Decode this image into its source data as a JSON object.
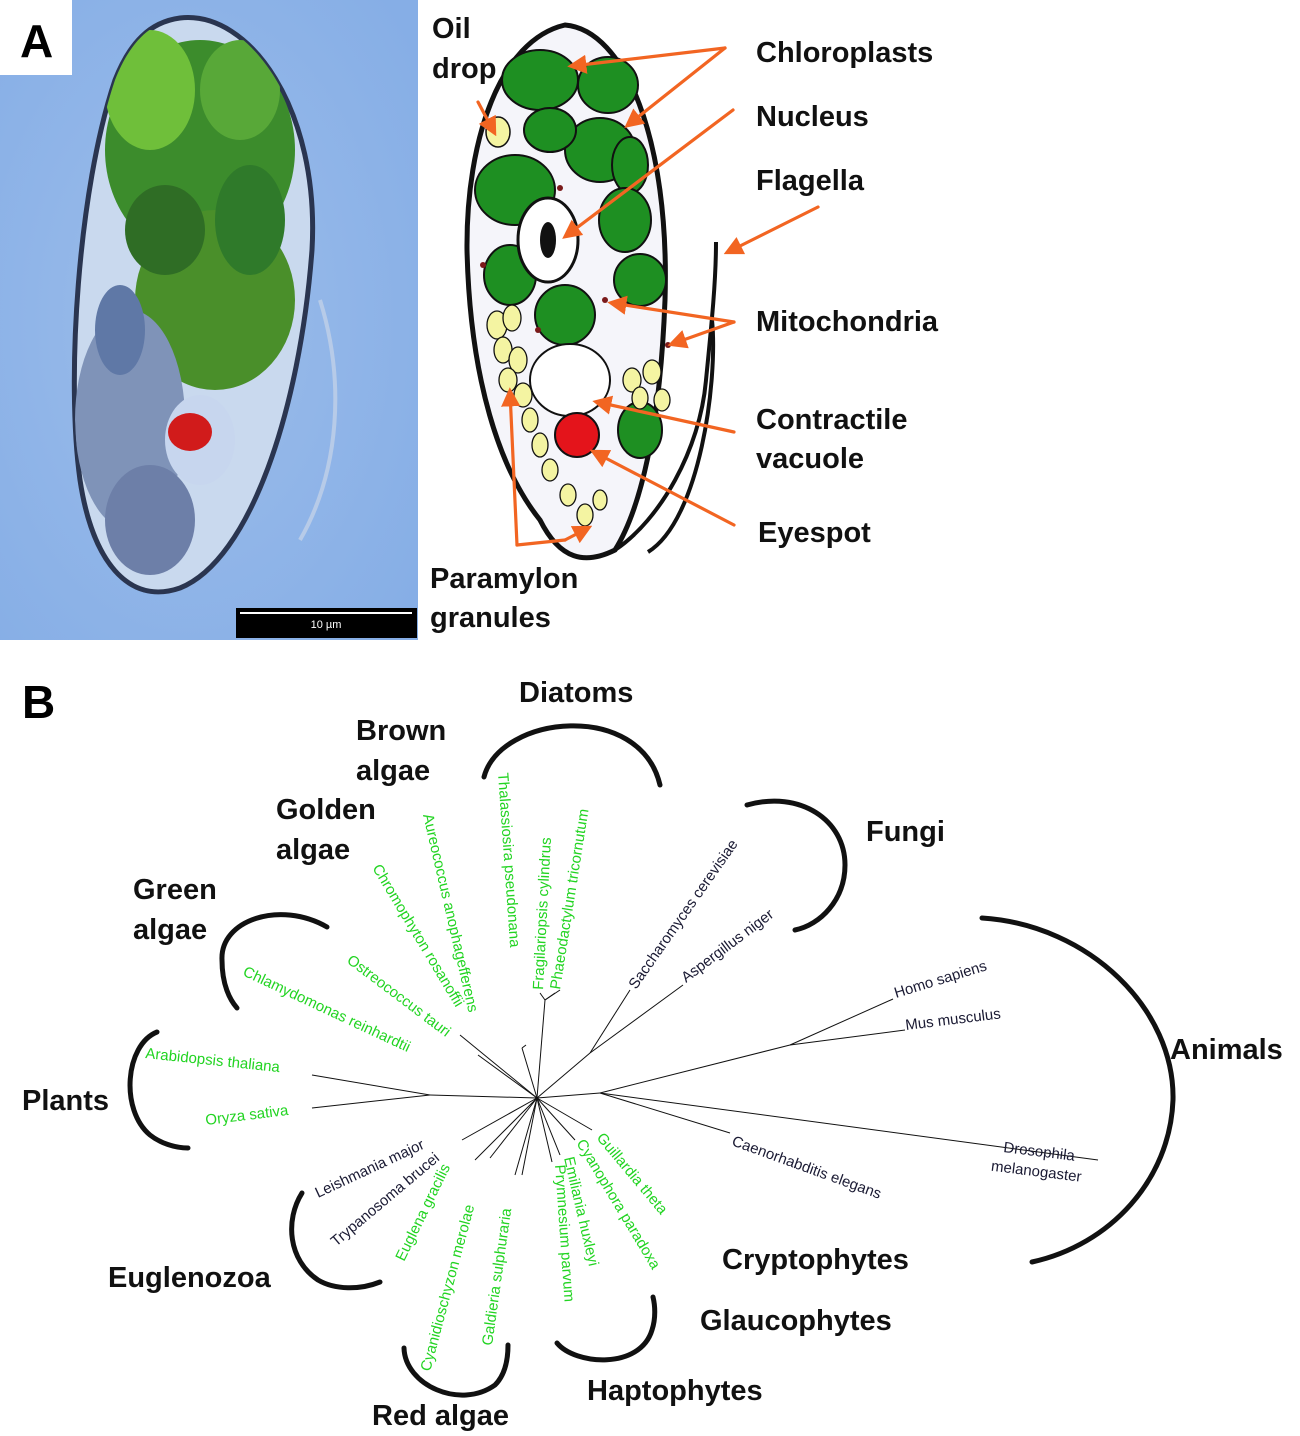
{
  "panel_a": {
    "letter": "A",
    "scale_bar": {
      "label": "10 µm"
    },
    "labels": {
      "oil_drop": [
        "Oil",
        "drop"
      ],
      "chloroplasts": "Chloroplasts",
      "nucleus": "Nucleus",
      "flagella": "Flagella",
      "mitochondria": "Mitochondria",
      "contractile_vacuole": [
        "Contractile",
        "vacuole"
      ],
      "eyespot": "Eyespot",
      "paramylon_granules": [
        "Paramylon",
        "granules"
      ]
    },
    "colors": {
      "arrow": "#f26522",
      "chloroplast": "#1e8f22",
      "paramylon": "#f4f4a2",
      "eyespot": "#e4141b",
      "micrograph_bg": "#8fb3e6"
    }
  },
  "panel_b": {
    "letter": "B",
    "groups": {
      "diatoms": "Diatoms",
      "brown_algae": [
        "Brown",
        "algae"
      ],
      "golden_algae": [
        "Golden",
        "algae"
      ],
      "green_algae": [
        "Green",
        "algae"
      ],
      "plants": "Plants",
      "euglenozoa": "Euglenozoa",
      "red_algae": "Red algae",
      "haptophytes": "Haptophytes",
      "glaucophytes": "Glaucophytes",
      "cryptophytes": "Cryptophytes",
      "fungi": "Fungi",
      "animals": "Animals"
    },
    "species": {
      "thalassiosira": "Thalassiosira pseudonana",
      "fragilariopsis": "Fragilariopsis cylindrus",
      "phaeodactylum": "Phaeodactylum tricornutum",
      "aureococcus": "Aureococcus anophagefferens",
      "chromophyton": "Chromophyton rosanoffii",
      "ostreococcus": "Ostreococcus tauri",
      "chlamydomonas": "Chlamydomonas reinhardtii",
      "arabidopsis": "Arabidopsis thaliana",
      "oryza": "Oryza sativa",
      "leishmania": "Leishmania major",
      "trypanosoma": "Trypanosoma brucei",
      "euglena": "Euglena gracilis",
      "cyanidioschyzon": "Cyanidioschyzon merolae",
      "galdieria": "Galdieria sulphuraria",
      "prymnesium": "Prymnesium parvum",
      "emiliania": "Emiliania huxleyi",
      "cyanophora": "Cyanophora paradoxa",
      "guillardia": "Guillardia theta",
      "saccharomyces": "Saccharomyces cerevisiae",
      "aspergillus": "Aspergillus niger",
      "homo": "Homo sapiens",
      "mus": "Mus musculus",
      "caenorhabditis": "Caenorhabditis elegans",
      "drosophila": [
        "Drosophila",
        "melanogaster"
      ]
    },
    "colors": {
      "photosynthetic_species": "#22d422",
      "other_species": "#1a1a33"
    }
  }
}
